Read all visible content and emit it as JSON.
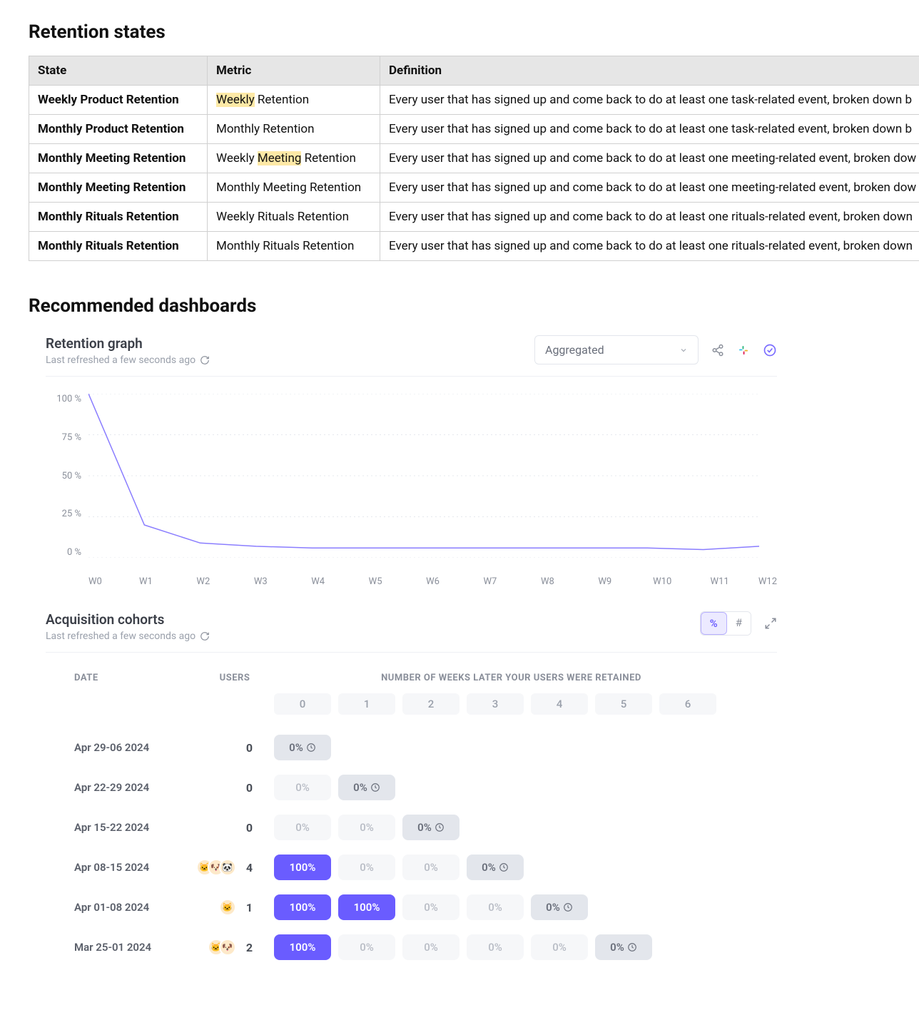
{
  "sections": {
    "retention_states_title": "Retention states",
    "recommended_title": "Recommended dashboards"
  },
  "table": {
    "headers": {
      "state": "State",
      "metric": "Metric",
      "definition": "Definition"
    },
    "rows": [
      {
        "state": "Weekly Product Retention",
        "metric_pre": "",
        "metric_hl": "Weekly",
        "metric_post": " Retention",
        "definition": "Every user that has signed up and come back to do at least one task-related event, broken down b"
      },
      {
        "state": "Monthly Product Retention",
        "metric_pre": "Monthly Retention",
        "metric_hl": "",
        "metric_post": "",
        "definition": "Every user that has signed up and come back to do at least one task-related event, broken down b"
      },
      {
        "state": "Monthly Meeting Retention",
        "metric_pre": "Weekly ",
        "metric_hl": "Meeting",
        "metric_post": " Retention",
        "definition": "Every user that has signed up and come back to do at least one meeting-related event, broken dow"
      },
      {
        "state": "Monthly Meeting Retention",
        "metric_pre": "Monthly Meeting Retention",
        "metric_hl": "",
        "metric_post": "",
        "definition": "Every user that has signed up and come back to do at least one meeting-related event, broken dow"
      },
      {
        "state": "Monthly Rituals Retention",
        "metric_pre": "Weekly Rituals Retention",
        "metric_hl": "",
        "metric_post": "",
        "definition": "Every user that has signed up and come back to do at least one rituals-related event, broken down"
      },
      {
        "state": "Monthly Rituals Retention",
        "metric_pre": "Monthly Rituals Retention",
        "metric_hl": "",
        "metric_post": "",
        "definition": "Every user that has signed up and come back to do at least one rituals-related event, broken down"
      }
    ]
  },
  "retention_graph": {
    "title": "Retention graph",
    "subtitle": "Last refreshed a few seconds ago",
    "dropdown_value": "Aggregated",
    "chart": {
      "type": "line",
      "line_color": "#8a7dff",
      "line_width": 1.5,
      "grid_color": "#e6e8ee",
      "background": "#ffffff",
      "ylim": [
        0,
        100
      ],
      "y_ticks": [
        "100 %",
        "75 %",
        "50 %",
        "25 %",
        "0 %"
      ],
      "x_labels": [
        "W0",
        "W1",
        "W2",
        "W3",
        "W4",
        "W5",
        "W6",
        "W7",
        "W8",
        "W9",
        "W10",
        "W11",
        "W12"
      ],
      "values": [
        100,
        20,
        9,
        7,
        6,
        6,
        6,
        6,
        6,
        6,
        6,
        5,
        7
      ]
    }
  },
  "cohorts": {
    "title": "Acquisition cohorts",
    "subtitle": "Last refreshed a few seconds ago",
    "toggle": {
      "percent": "%",
      "hash": "#",
      "active": "percent"
    },
    "headers": {
      "date": "DATE",
      "users": "USERS",
      "weeks_label": "NUMBER OF WEEKS LATER YOUR USERS WERE RETAINED"
    },
    "week_numbers": [
      "0",
      "1",
      "2",
      "3",
      "4",
      "5",
      "6"
    ],
    "cell_colors": {
      "light_bg": "#f6f7f9",
      "light_fg": "#b8bcc5",
      "gray_bg": "#e3e6ec",
      "gray_fg": "#6a6f7b",
      "purple_bg": "#6a5cff",
      "purple_fg": "#ffffff"
    },
    "rows": [
      {
        "date": "Apr 29-06 2024",
        "users": "0",
        "avatars": 0,
        "cells": [
          {
            "v": "0%",
            "style": "gray",
            "clock": true
          }
        ]
      },
      {
        "date": "Apr 22-29 2024",
        "users": "0",
        "avatars": 0,
        "cells": [
          {
            "v": "0%",
            "style": "light"
          },
          {
            "v": "0%",
            "style": "gray",
            "clock": true
          }
        ]
      },
      {
        "date": "Apr 15-22 2024",
        "users": "0",
        "avatars": 0,
        "cells": [
          {
            "v": "0%",
            "style": "light"
          },
          {
            "v": "0%",
            "style": "light"
          },
          {
            "v": "0%",
            "style": "gray",
            "clock": true
          }
        ]
      },
      {
        "date": "Apr 08-15 2024",
        "users": "4",
        "avatars": 3,
        "cells": [
          {
            "v": "100%",
            "style": "purple"
          },
          {
            "v": "0%",
            "style": "light"
          },
          {
            "v": "0%",
            "style": "light"
          },
          {
            "v": "0%",
            "style": "gray",
            "clock": true
          }
        ]
      },
      {
        "date": "Apr 01-08 2024",
        "users": "1",
        "avatars": 1,
        "cells": [
          {
            "v": "100%",
            "style": "purple"
          },
          {
            "v": "100%",
            "style": "purple"
          },
          {
            "v": "0%",
            "style": "light"
          },
          {
            "v": "0%",
            "style": "light"
          },
          {
            "v": "0%",
            "style": "gray",
            "clock": true
          }
        ]
      },
      {
        "date": "Mar 25-01 2024",
        "users": "2",
        "avatars": 2,
        "cells": [
          {
            "v": "100%",
            "style": "purple"
          },
          {
            "v": "0%",
            "style": "light"
          },
          {
            "v": "0%",
            "style": "light"
          },
          {
            "v": "0%",
            "style": "light"
          },
          {
            "v": "0%",
            "style": "light"
          },
          {
            "v": "0%",
            "style": "gray",
            "clock": true
          }
        ]
      }
    ]
  }
}
